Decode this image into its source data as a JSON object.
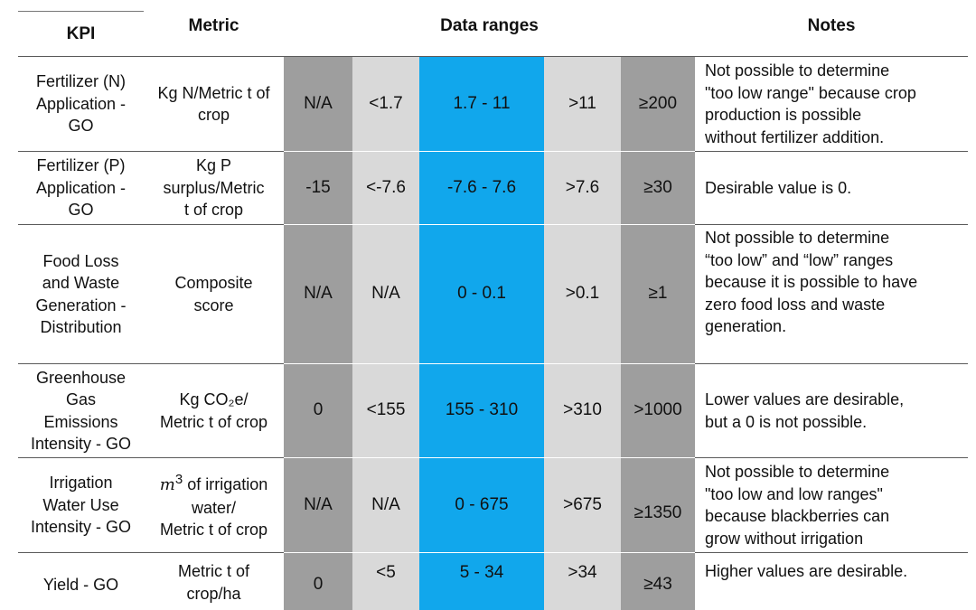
{
  "headers": {
    "kpi": "KPI",
    "metric": "Metric",
    "ranges": "Data ranges",
    "notes": "Notes"
  },
  "rows": [
    {
      "kpi": [
        "Fertilizer (N)",
        "Application -",
        "GO"
      ],
      "metric": [
        "Kg N/Metric t of",
        "crop"
      ],
      "ranges": [
        "N/A",
        "<1.7",
        "1.7 - 11",
        ">11",
        "≥200"
      ],
      "notes": [
        "Not possible to determine",
        "\"too low range\" because crop",
        "production is possible",
        "without fertilizer addition."
      ]
    },
    {
      "kpi": [
        "Fertilizer (P)",
        "Application -",
        "GO"
      ],
      "metric": [
        "Kg P",
        "surplus/Metric",
        "t of crop"
      ],
      "ranges": [
        "-15",
        "<-7.6",
        "-7.6 - 7.6",
        ">7.6",
        "≥30"
      ],
      "notes": [
        "Desirable value is 0."
      ]
    },
    {
      "kpi": [
        "Food Loss",
        "and Waste",
        "Generation -",
        "Distribution"
      ],
      "metric": [
        "Composite",
        "score"
      ],
      "ranges": [
        "N/A",
        "N/A",
        "0 - 0.1",
        ">0.1",
        "≥1"
      ],
      "notes": [
        "Not possible to determine",
        "“too low” and “low” ranges",
        "because it is possible to have",
        "zero food loss and waste",
        "generation."
      ]
    },
    {
      "kpi": [
        "Greenhouse",
        "Gas",
        "Emissions",
        "Intensity - GO"
      ],
      "metric": [
        "Kg CO₂e/",
        "Metric t of crop"
      ],
      "ranges": [
        "0",
        "<155",
        "155 - 310",
        ">310",
        ">1000"
      ],
      "notes": [
        "Lower values are desirable,",
        "but a 0 is not possible."
      ]
    },
    {
      "kpi": [
        "Irrigation",
        "Water Use",
        "Intensity - GO"
      ],
      "metric_math": "m",
      "metric_sup": "3",
      "metric": [
        " of irrigation",
        "water/",
        "Metric t of crop"
      ],
      "ranges": [
        "N/A",
        "N/A",
        "0 - 675",
        ">675",
        "≥1350"
      ],
      "notes": [
        "Not possible to determine",
        "\"too low and low ranges\"",
        "because blackberries can",
        "grow without irrigation"
      ]
    },
    {
      "kpi": [
        "Yield - GO"
      ],
      "metric": [
        "Metric t of",
        "crop/ha"
      ],
      "ranges": [
        "0",
        "<5",
        "5 - 34",
        ">34",
        "≥43"
      ],
      "notes": [
        "Higher values are desirable."
      ]
    }
  ]
}
